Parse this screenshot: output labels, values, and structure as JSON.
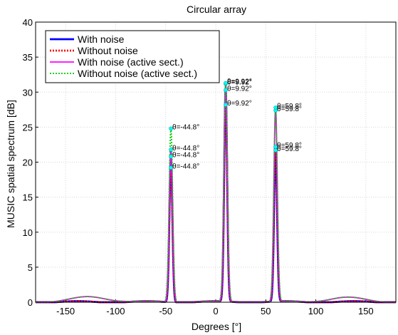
{
  "chart_data": {
    "type": "line",
    "title": "Circular array",
    "xlabel": "Degrees   [°]",
    "ylabel": "MUSIC spatial spectrum   [dB]",
    "xlim": [
      -180,
      180
    ],
    "ylim": [
      0,
      40
    ],
    "xticks": [
      -150,
      -100,
      -50,
      0,
      50,
      100,
      150
    ],
    "yticks": [
      0,
      5,
      10,
      15,
      20,
      25,
      30,
      35,
      40
    ],
    "grid": true,
    "legend_position": "top-left",
    "peaks_deg": [
      -44.8,
      9.92,
      59.8
    ],
    "series": [
      {
        "name": "With noise",
        "color": "#0000ff",
        "style": "solid",
        "peak_heights": [
          20.8,
          30.3,
          21.7
        ],
        "peak_labels": [
          "θ=-44.8°",
          "θ=9.92°",
          "θ=59.8°"
        ]
      },
      {
        "name": "Without noise",
        "color": "#ff0000",
        "style": "dotted",
        "peak_heights": [
          19.2,
          28.2,
          22.2
        ],
        "peak_labels": [
          "θ=-44.8°",
          "θ=9.92°",
          "θ=59.8°"
        ]
      },
      {
        "name": "With noise (active sect.)",
        "color": "#ff00ff",
        "style": "solid",
        "peak_heights": [
          21.8,
          31.2,
          27.4
        ],
        "peak_labels": [
          "θ=-44.8°",
          "θ=9.92°",
          "θ=59.8°"
        ]
      },
      {
        "name": "Without noise (active sect.)",
        "color": "#00cc00",
        "style": "dotted",
        "peak_heights": [
          24.8,
          31.3,
          27.8
        ],
        "peak_labels": [
          "θ=-44.8°",
          "θ=9.92°",
          "θ=59.8°"
        ]
      }
    ],
    "baseline_bumps": [
      {
        "center": -125,
        "height": 0.7
      },
      {
        "center": 130,
        "height": 0.6
      }
    ]
  }
}
